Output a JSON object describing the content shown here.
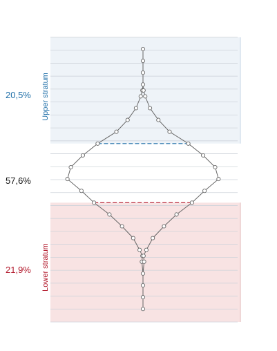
{
  "colors": {
    "upper": "#1f6fa8",
    "lower": "#b2182b",
    "upper_fill": "#eef3f8",
    "lower_fill": "#f8e3e3",
    "middle_text": "#111111",
    "outline": "#666666",
    "grid": "#cdd3da",
    "marker_fill": "#ffffff",
    "marker_stroke": "#666666"
  },
  "chart_data": {
    "type": "line",
    "y_levels": 23,
    "regions": [
      {
        "name": "Upper stratum",
        "share_label": "20,5%",
        "level_from": 0,
        "level_to": 8
      },
      {
        "name": "",
        "share_label": "57,6%",
        "level_from": 8,
        "level_to": 13
      },
      {
        "name": "Lower stratum",
        "share_label": "21,9%",
        "level_from": 13,
        "level_to": 23
      }
    ],
    "profile": {
      "level": [
        0,
        1,
        2,
        3,
        3.5,
        4,
        5,
        6,
        7,
        8,
        9,
        10,
        11,
        12,
        13,
        14,
        15,
        16,
        17,
        17.5,
        18,
        19,
        20,
        21,
        22
      ],
      "half_width": [
        0,
        0,
        0,
        0,
        0.02,
        0.08,
        0.25,
        0.55,
        0.95,
        1.62,
        2.15,
        2.58,
        2.7,
        2.2,
        1.75,
        1.2,
        0.75,
        0.35,
        0.12,
        0.02,
        0.04,
        0,
        0,
        0,
        0
      ]
    },
    "dashed_separators": [
      8,
      13
    ],
    "grid": true
  }
}
